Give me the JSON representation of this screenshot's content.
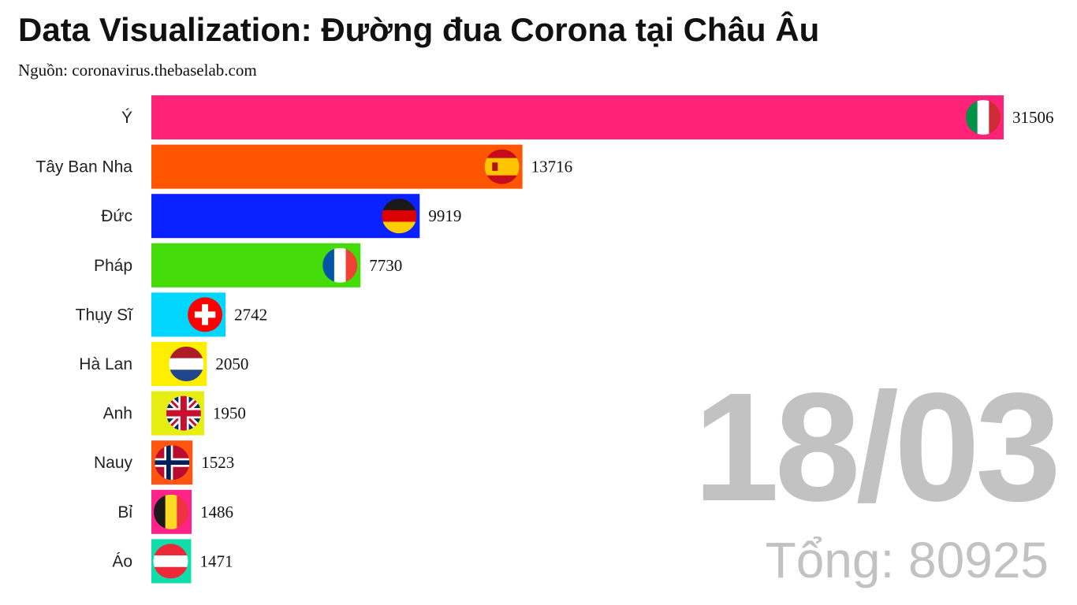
{
  "title": "Data Visualization: Đường đua Corona tại Châu Âu",
  "source": "Nguồn: coronavirus.thebaselab.com",
  "date_label": "18/03",
  "total_label": "Tổng: 80925",
  "chart_data": {
    "type": "bar",
    "orientation": "horizontal",
    "title": "Data Visualization: Đường đua Corona tại Châu Âu",
    "subtitle": "Nguồn: coronavirus.thebaselab.com",
    "categories": [
      "Ý",
      "Tây Ban Nha",
      "Đức",
      "Pháp",
      "Thụy Sĩ",
      "Hà Lan",
      "Anh",
      "Nauy",
      "Bỉ",
      "Áo"
    ],
    "values": [
      31506,
      13716,
      9919,
      7730,
      2742,
      2050,
      1950,
      1523,
      1486,
      1471
    ],
    "bar_colors": [
      "#ff2277",
      "#ff5500",
      "#0a22ff",
      "#44dd0a",
      "#00d6ff",
      "#ffee00",
      "#e6ee11",
      "#ff5511",
      "#ff2288",
      "#11ddaa"
    ],
    "flag_icons": [
      "flag-italy-icon",
      "flag-spain-icon",
      "flag-germany-icon",
      "flag-france-icon",
      "flag-switzerland-icon",
      "flag-netherlands-icon",
      "flag-uk-icon",
      "flag-norway-icon",
      "flag-belgium-icon",
      "flag-austria-icon"
    ],
    "xlim": [
      0,
      31506
    ],
    "grid": false,
    "legend": "none"
  }
}
